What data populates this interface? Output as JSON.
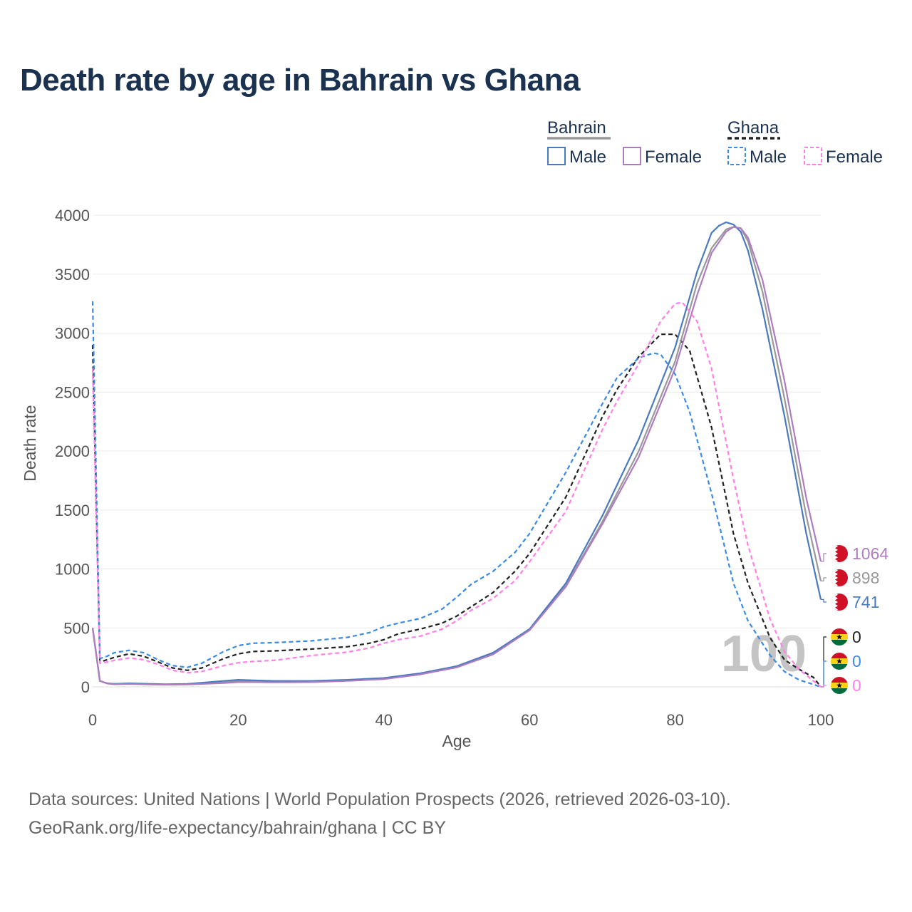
{
  "title": "Death rate by age in Bahrain vs Ghana",
  "legend": {
    "groups": [
      {
        "name": "Bahrain",
        "style": "solid",
        "entries": [
          {
            "label": "Male",
            "color": "#4a7abf"
          },
          {
            "label": "Female",
            "color": "#b07cc0"
          }
        ]
      },
      {
        "name": "Ghana",
        "style": "dashed",
        "entries": [
          {
            "label": "Male",
            "color": "#3b8ae6"
          },
          {
            "label": "Female",
            "color": "#ff80e8"
          }
        ]
      }
    ]
  },
  "chart_data": {
    "type": "line",
    "xlabel": "Age",
    "ylabel": "Death rate",
    "xlim": [
      0,
      100
    ],
    "ylim": [
      0,
      4000
    ],
    "xticks": [
      "0",
      "20",
      "40",
      "60",
      "80",
      "100"
    ],
    "yticks": [
      "0",
      "500",
      "1000",
      "1500",
      "2000",
      "2500",
      "3000",
      "3500",
      "4000"
    ],
    "watermark_age": "100",
    "series": [
      {
        "name": "Ghana Total",
        "country": "Ghana",
        "sex": "Total",
        "color": "#222222",
        "dash": true,
        "end_value": "0",
        "x": [
          0,
          1,
          2,
          3,
          5,
          7,
          9,
          11,
          13,
          15,
          18,
          20,
          22,
          25,
          30,
          35,
          38,
          40,
          42,
          45,
          48,
          50,
          52,
          55,
          58,
          60,
          65,
          70,
          72,
          75,
          78,
          80,
          82,
          85,
          88,
          90,
          93,
          95,
          97,
          99,
          100
        ],
        "y": [
          2900,
          210,
          230,
          250,
          280,
          260,
          210,
          160,
          140,
          160,
          240,
          280,
          300,
          305,
          320,
          340,
          370,
          400,
          450,
          490,
          540,
          600,
          680,
          800,
          980,
          1130,
          1610,
          2290,
          2520,
          2800,
          2990,
          2990,
          2850,
          2200,
          1300,
          880,
          420,
          230,
          150,
          80,
          0
        ]
      },
      {
        "name": "Bahrain Total",
        "country": "Bahrain",
        "sex": "Total",
        "color": "#999999",
        "dash": false,
        "end_value": "898",
        "x": [
          0,
          1,
          2,
          3,
          5,
          8,
          10,
          13,
          15,
          18,
          20,
          22,
          25,
          30,
          35,
          40,
          45,
          50,
          55,
          60,
          65,
          70,
          75,
          80,
          83,
          85,
          87,
          88,
          89,
          90,
          92,
          95,
          98,
          100
        ],
        "y": [
          500,
          50,
          30,
          25,
          28,
          22,
          20,
          22,
          28,
          38,
          48,
          48,
          45,
          45,
          55,
          70,
          110,
          170,
          280,
          480,
          860,
          1400,
          2000,
          2760,
          3420,
          3720,
          3880,
          3900,
          3890,
          3780,
          3350,
          2450,
          1450,
          898
        ]
      },
      {
        "name": "Bahrain Male",
        "country": "Bahrain",
        "sex": "Male",
        "color": "#4a7abf",
        "dash": false,
        "end_value": "741",
        "x": [
          0,
          1,
          2,
          3,
          5,
          8,
          10,
          13,
          15,
          18,
          20,
          22,
          25,
          30,
          35,
          40,
          45,
          50,
          55,
          60,
          65,
          70,
          75,
          80,
          83,
          85,
          86,
          87,
          88,
          89,
          90,
          92,
          95,
          98,
          100
        ],
        "y": [
          500,
          50,
          30,
          25,
          30,
          25,
          22,
          25,
          35,
          50,
          60,
          55,
          50,
          50,
          60,
          75,
          115,
          175,
          290,
          490,
          880,
          1450,
          2100,
          2880,
          3520,
          3850,
          3910,
          3940,
          3920,
          3860,
          3700,
          3200,
          2300,
          1300,
          741
        ]
      },
      {
        "name": "Bahrain Female",
        "country": "Bahrain",
        "sex": "Female",
        "color": "#b07cc0",
        "dash": false,
        "end_value": "1064",
        "x": [
          0,
          1,
          2,
          3,
          5,
          8,
          10,
          13,
          15,
          18,
          20,
          22,
          25,
          30,
          35,
          40,
          45,
          50,
          55,
          60,
          65,
          70,
          75,
          80,
          83,
          85,
          87,
          88,
          89,
          90,
          92,
          95,
          98,
          100
        ],
        "y": [
          500,
          50,
          28,
          22,
          25,
          20,
          18,
          20,
          25,
          32,
          40,
          40,
          38,
          40,
          50,
          65,
          105,
          165,
          275,
          480,
          850,
          1380,
          1950,
          2700,
          3320,
          3680,
          3860,
          3900,
          3890,
          3810,
          3450,
          2600,
          1600,
          1064
        ]
      },
      {
        "name": "Ghana Male",
        "country": "Ghana",
        "sex": "Male",
        "color": "#3b8ae6",
        "dash": true,
        "end_value": "0",
        "x": [
          0,
          1,
          2,
          3,
          5,
          7,
          9,
          11,
          13,
          15,
          18,
          20,
          22,
          25,
          30,
          35,
          38,
          40,
          42,
          45,
          48,
          50,
          52,
          55,
          58,
          60,
          65,
          70,
          72,
          75,
          77,
          78,
          80,
          82,
          85,
          88,
          90,
          93,
          95,
          97,
          100
        ],
        "y": [
          3270,
          240,
          260,
          290,
          310,
          290,
          230,
          180,
          165,
          200,
          300,
          350,
          370,
          375,
          390,
          420,
          460,
          510,
          540,
          580,
          660,
          760,
          870,
          980,
          1140,
          1300,
          1820,
          2400,
          2620,
          2790,
          2830,
          2820,
          2650,
          2330,
          1640,
          880,
          560,
          270,
          130,
          60,
          0
        ]
      },
      {
        "name": "Ghana Female",
        "country": "Ghana",
        "sex": "Female",
        "color": "#ff80e8",
        "dash": true,
        "end_value": "0",
        "x": [
          0,
          1,
          2,
          3,
          5,
          7,
          9,
          11,
          13,
          15,
          18,
          20,
          22,
          25,
          30,
          35,
          38,
          40,
          42,
          45,
          48,
          50,
          52,
          55,
          58,
          60,
          65,
          70,
          72,
          75,
          78,
          80,
          81,
          83,
          85,
          88,
          90,
          93,
          95,
          97,
          100
        ],
        "y": [
          2700,
          200,
          210,
          225,
          245,
          230,
          190,
          140,
          120,
          130,
          180,
          205,
          215,
          225,
          265,
          295,
          330,
          370,
          400,
          430,
          490,
          560,
          650,
          750,
          900,
          1060,
          1490,
          2180,
          2420,
          2740,
          3100,
          3250,
          3260,
          3100,
          2700,
          1760,
          1200,
          580,
          300,
          150,
          0
        ]
      }
    ]
  },
  "sources": {
    "line1": "Data sources: United Nations | World Population Prospects (2026, retrieved 2026-03-10).",
    "line2": "GeoRank.org/life-expectancy/bahrain/ghana | CC BY"
  }
}
